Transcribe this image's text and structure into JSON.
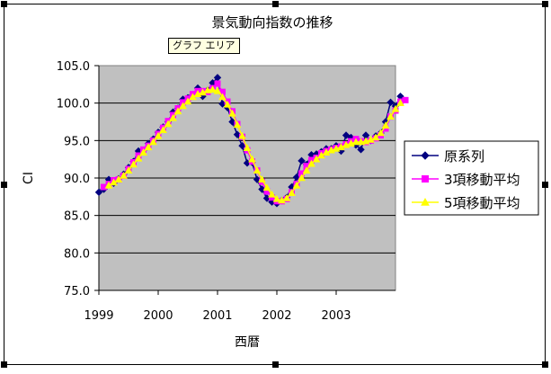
{
  "tooltip": "グラフ エリア",
  "chart_data": {
    "type": "line",
    "title": "景気動向指数の推移",
    "xlabel": "西暦",
    "ylabel": "CI",
    "ylim": [
      75,
      105
    ],
    "yticks": [
      "75.0",
      "80.0",
      "85.0",
      "90.0",
      "95.0",
      "100.0",
      "105.0"
    ],
    "xlim": [
      1999,
      2004
    ],
    "xticks": [
      "1999",
      "2000",
      "2001",
      "2002",
      "2003"
    ],
    "grid": true,
    "plot_background": "#c0c0c0",
    "legend_position": "right",
    "series": [
      {
        "name": "原系列",
        "color": "#000080",
        "marker": "diamond",
        "values": [
          88.1,
          88.5,
          89.8,
          89.3,
          89.9,
          90.5,
          91.4,
          92.2,
          93.6,
          93.7,
          94.6,
          95.2,
          96.1,
          96.8,
          97.5,
          98.8,
          99.3,
          100.5,
          100.7,
          101.1,
          102.0,
          100.9,
          101.7,
          102.7,
          103.4,
          99.9,
          99.4,
          97.5,
          95.8,
          94.3,
          92.0,
          92.1,
          89.8,
          88.5,
          87.3,
          86.8,
          86.6,
          87.0,
          87.4,
          88.8,
          90.1,
          92.3,
          91.8,
          93.1,
          93.2,
          93.5,
          93.9,
          93.9,
          94.3,
          93.6,
          95.7,
          95.4,
          94.4,
          93.8,
          95.7,
          95.0,
          95.6,
          96.0,
          97.5,
          100.1,
          99.6,
          100.9
        ],
        "x": [
          1999.0,
          1999.083,
          1999.167,
          1999.25,
          1999.333,
          1999.417,
          1999.5,
          1999.583,
          1999.667,
          1999.75,
          1999.833,
          1999.917,
          2000.0,
          2000.083,
          2000.167,
          2000.25,
          2000.333,
          2000.417,
          2000.5,
          2000.583,
          2000.667,
          2000.75,
          2000.833,
          2000.917,
          2001.0,
          2001.083,
          2001.167,
          2001.25,
          2001.333,
          2001.417,
          2001.5,
          2001.583,
          2001.667,
          2001.75,
          2001.833,
          2001.917,
          2002.0,
          2002.083,
          2002.167,
          2002.25,
          2002.333,
          2002.417,
          2002.5,
          2002.583,
          2002.667,
          2002.75,
          2002.833,
          2002.917,
          2003.0,
          2003.083,
          2003.167,
          2003.25,
          2003.333,
          2003.417,
          2003.5,
          2003.583,
          2003.667,
          2003.75,
          2003.833,
          2003.917,
          2004.0,
          2004.083
        ]
      },
      {
        "name": "3項移動平均",
        "color": "#ff00ff",
        "marker": "square",
        "values": [
          88.8,
          89.2,
          89.7,
          89.8,
          90.3,
          91.2,
          92.1,
          93.0,
          93.8,
          94.3,
          95.0,
          95.9,
          96.7,
          97.6,
          98.4,
          99.3,
          100.1,
          100.6,
          101.2,
          101.6,
          101.6,
          101.5,
          102.0,
          102.6,
          101.5,
          100.2,
          98.9,
          97.2,
          95.5,
          93.7,
          92.2,
          91.0,
          89.5,
          88.2,
          87.4,
          86.9,
          86.9,
          87.2,
          88.1,
          89.2,
          90.6,
          91.6,
          92.4,
          92.7,
          93.3,
          93.6,
          93.8,
          94.0,
          94.2,
          94.5,
          94.9,
          95.2,
          94.9,
          94.8,
          95.0,
          95.3,
          95.7,
          96.6,
          98.2,
          99.0,
          100.2,
          100.4
        ],
        "x": [
          1999.083,
          1999.167,
          1999.25,
          1999.333,
          1999.417,
          1999.5,
          1999.583,
          1999.667,
          1999.75,
          1999.833,
          1999.917,
          2000.0,
          2000.083,
          2000.167,
          2000.25,
          2000.333,
          2000.417,
          2000.5,
          2000.583,
          2000.667,
          2000.75,
          2000.833,
          2000.917,
          2001.0,
          2001.083,
          2001.167,
          2001.25,
          2001.333,
          2001.417,
          2001.5,
          2001.583,
          2001.667,
          2001.75,
          2001.833,
          2001.917,
          2002.0,
          2002.083,
          2002.167,
          2002.25,
          2002.333,
          2002.417,
          2002.5,
          2002.583,
          2002.667,
          2002.75,
          2002.833,
          2002.917,
          2003.0,
          2003.083,
          2003.167,
          2003.25,
          2003.333,
          2003.417,
          2003.5,
          2003.583,
          2003.667,
          2003.75,
          2003.833,
          2003.917,
          2004.0,
          2004.083,
          2004.167
        ]
      },
      {
        "name": "5項移動平均",
        "color": "#ffff00",
        "marker": "triangle",
        "values": [
          89.0,
          89.4,
          89.8,
          90.3,
          91.0,
          91.8,
          92.6,
          93.4,
          94.1,
          94.8,
          95.6,
          96.4,
          97.2,
          98.0,
          98.9,
          99.6,
          100.2,
          100.8,
          101.2,
          101.4,
          101.7,
          101.8,
          101.6,
          100.8,
          99.8,
          98.6,
          97.1,
          95.6,
          94.0,
          92.5,
          91.0,
          89.8,
          88.7,
          87.8,
          87.2,
          87.0,
          87.3,
          88.0,
          89.0,
          90.0,
          91.0,
          91.9,
          92.5,
          93.0,
          93.4,
          93.7,
          93.9,
          94.1,
          94.4,
          94.6,
          94.8,
          94.8,
          94.9,
          95.1,
          95.4,
          96.0,
          97.0,
          98.2,
          99.2,
          100.0
        ],
        "x": [
          1999.167,
          1999.25,
          1999.333,
          1999.417,
          1999.5,
          1999.583,
          1999.667,
          1999.75,
          1999.833,
          1999.917,
          2000.0,
          2000.083,
          2000.167,
          2000.25,
          2000.333,
          2000.417,
          2000.5,
          2000.583,
          2000.667,
          2000.75,
          2000.833,
          2000.917,
          2001.0,
          2001.083,
          2001.167,
          2001.25,
          2001.333,
          2001.417,
          2001.5,
          2001.583,
          2001.667,
          2001.75,
          2001.833,
          2001.917,
          2002.0,
          2002.083,
          2002.167,
          2002.25,
          2002.333,
          2002.417,
          2002.5,
          2002.583,
          2002.667,
          2002.75,
          2002.833,
          2002.917,
          2003.0,
          2003.083,
          2003.167,
          2003.25,
          2003.333,
          2003.417,
          2003.5,
          2003.583,
          2003.667,
          2003.75,
          2003.833,
          2003.917,
          2004.0,
          2004.083
        ]
      }
    ]
  }
}
